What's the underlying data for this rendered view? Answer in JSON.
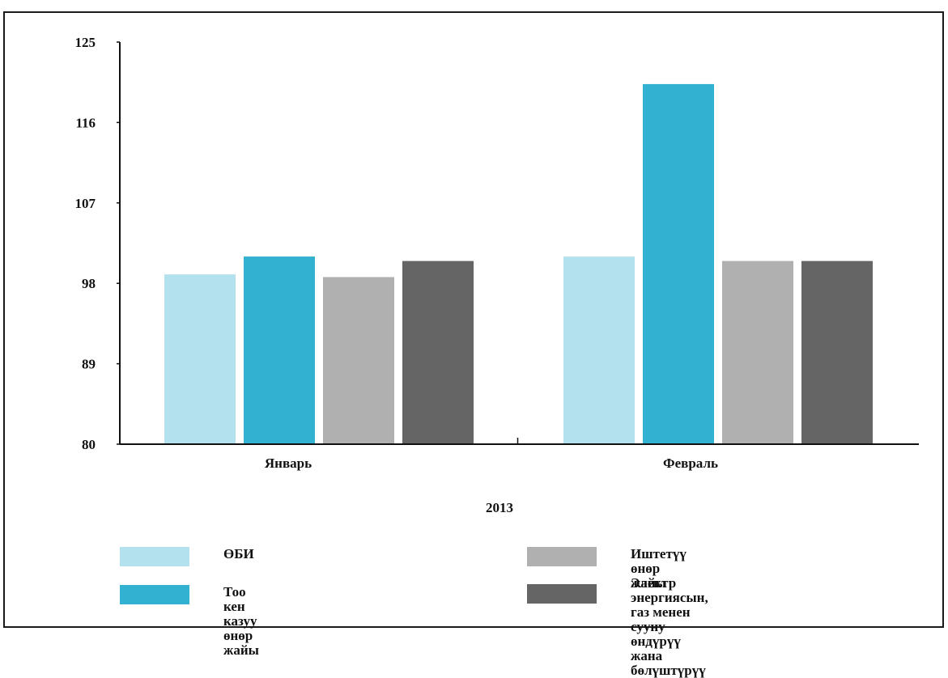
{
  "chart_data": {
    "type": "bar",
    "categories": [
      "Январь",
      "Февраль"
    ],
    "xlabel": "2013",
    "ylim": [
      80,
      125
    ],
    "yticks": [
      80,
      89,
      98,
      107,
      116,
      125
    ],
    "grid": false,
    "legend_placement": "bottom",
    "series": [
      {
        "name": "ӨБИ",
        "color": "#b3e2ee",
        "values": [
          99.0,
          101.0
        ]
      },
      {
        "name": "Тоо кен казуу өнөр жайы",
        "color": "#33b1d0",
        "values": [
          101.0,
          120.3
        ]
      },
      {
        "name": "Иштетүү өнөр жайы",
        "color": "#b0b0b0",
        "values": [
          98.7,
          100.5
        ]
      },
      {
        "name": "Электр энергиясын, газ менен сууну\n өндүрүү жана бөлүштүрүү",
        "color": "#656565",
        "values": [
          100.5,
          100.5
        ]
      }
    ]
  }
}
